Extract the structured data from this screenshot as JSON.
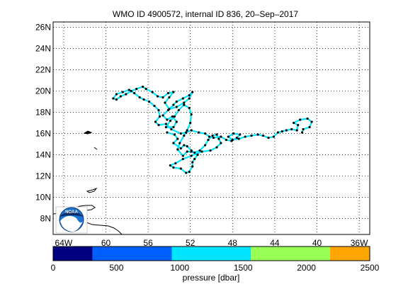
{
  "title": "WMO ID 4900572, internal ID 836, 20–Sep–2017",
  "map": {
    "lon_range": [
      -65,
      -35
    ],
    "lat_range": [
      6.5,
      26.5
    ],
    "lat_ticks": [
      8,
      10,
      12,
      14,
      16,
      18,
      20,
      22,
      24,
      26
    ],
    "lon_ticks": [
      -64,
      -60,
      -56,
      -52,
      -48,
      -44,
      -40,
      -36
    ],
    "lat_tick_labels": [
      "8N",
      "10N",
      "12N",
      "14N",
      "16N",
      "18N",
      "20N",
      "22N",
      "24N",
      "26N"
    ],
    "lon_tick_labels": [
      "64W",
      "60",
      "56",
      "52",
      "48",
      "44",
      "40",
      "36W"
    ],
    "grid": true,
    "logo_label": "NOAA"
  },
  "colorbar": {
    "label": "pressure [dbar]",
    "ticks": [
      0,
      500,
      1000,
      1500,
      2000,
      2500
    ],
    "tick_labels": [
      "0",
      "500",
      "1000",
      "1500",
      "2000",
      "2500"
    ],
    "segments": [
      {
        "from": 0,
        "to": 312,
        "color": "#000080"
      },
      {
        "from": 312,
        "to": 937,
        "color": "#0060ff"
      },
      {
        "from": 937,
        "to": 1562,
        "color": "#00e5ff"
      },
      {
        "from": 1562,
        "to": 2187,
        "color": "#99ff55"
      },
      {
        "from": 2187,
        "to": 2500,
        "color": "#ffa500"
      }
    ]
  },
  "colors": {
    "track": "#00e5ff",
    "profile_marker": "#000000",
    "coast": "#000000"
  },
  "trajectory": [
    [
      -54.2,
      16.1
    ],
    [
      -53.5,
      15.9
    ],
    [
      -53.2,
      15.5
    ],
    [
      -53.6,
      15.1
    ],
    [
      -52.9,
      14.6
    ],
    [
      -52.6,
      14.9
    ],
    [
      -52.3,
      14.8
    ],
    [
      -51.9,
      14.4
    ],
    [
      -51.6,
      14.2
    ],
    [
      -51.1,
      14.4
    ],
    [
      -50.6,
      14.9
    ],
    [
      -50.3,
      15.4
    ],
    [
      -49.9,
      15.8
    ],
    [
      -49.5,
      15.9
    ],
    [
      -49.3,
      15.5
    ],
    [
      -49.1,
      15.1
    ],
    [
      -49.5,
      14.7
    ],
    [
      -50.1,
      14.4
    ],
    [
      -50.9,
      14.3
    ],
    [
      -51.9,
      13.9
    ],
    [
      -52.7,
      13.6
    ],
    [
      -53.4,
      13.2
    ],
    [
      -53.9,
      13.0
    ],
    [
      -53.6,
      12.8
    ],
    [
      -52.9,
      12.7
    ],
    [
      -52.4,
      12.3
    ],
    [
      -52.1,
      12.4
    ],
    [
      -51.8,
      12.9
    ],
    [
      -51.8,
      13.3
    ],
    [
      -51.6,
      13.6
    ],
    [
      -51.3,
      14.0
    ],
    [
      -51.9,
      14.3
    ],
    [
      -52.3,
      14.3
    ],
    [
      -52.7,
      13.9
    ],
    [
      -53.2,
      14.5
    ],
    [
      -53.0,
      15.1
    ],
    [
      -52.6,
      15.8
    ],
    [
      -52.3,
      16.3
    ],
    [
      -52.0,
      17.0
    ],
    [
      -51.9,
      17.8
    ],
    [
      -52.1,
      18.4
    ],
    [
      -52.6,
      18.7
    ],
    [
      -53.1,
      18.2
    ],
    [
      -53.5,
      17.6
    ],
    [
      -53.9,
      17.2
    ],
    [
      -54.3,
      16.6
    ],
    [
      -53.6,
      16.6
    ],
    [
      -53.3,
      17.1
    ],
    [
      -53.7,
      17.6
    ],
    [
      -54.2,
      17.3
    ],
    [
      -54.6,
      17.7
    ],
    [
      -54.1,
      18.2
    ],
    [
      -53.6,
      18.7
    ],
    [
      -53.3,
      19.0
    ],
    [
      -52.7,
      19.3
    ],
    [
      -52.1,
      19.6
    ],
    [
      -51.8,
      19.9
    ],
    [
      -52.1,
      19.3
    ],
    [
      -52.6,
      18.9
    ],
    [
      -53.3,
      18.5
    ],
    [
      -54.0,
      18.3
    ],
    [
      -54.4,
      18.9
    ],
    [
      -54.0,
      19.4
    ],
    [
      -53.6,
      19.9
    ],
    [
      -54.1,
      19.8
    ],
    [
      -54.6,
      19.4
    ],
    [
      -55.1,
      19.5
    ],
    [
      -55.6,
      19.9
    ],
    [
      -56.2,
      20.2
    ],
    [
      -56.5,
      20.4
    ],
    [
      -57.1,
      20.2
    ],
    [
      -57.6,
      20.0
    ],
    [
      -58.1,
      19.7
    ],
    [
      -58.6,
      19.5
    ],
    [
      -59.0,
      19.2
    ],
    [
      -59.3,
      19.3
    ],
    [
      -59.0,
      19.7
    ],
    [
      -58.4,
      19.9
    ],
    [
      -57.8,
      20.1
    ],
    [
      -57.3,
      19.8
    ],
    [
      -56.8,
      19.4
    ],
    [
      -56.4,
      19.2
    ],
    [
      -55.9,
      19.0
    ],
    [
      -55.4,
      18.6
    ],
    [
      -55.0,
      18.2
    ],
    [
      -54.9,
      17.6
    ],
    [
      -55.3,
      17.1
    ],
    [
      -55.0,
      16.8
    ],
    [
      -54.3,
      16.9
    ],
    [
      -53.8,
      16.4
    ],
    [
      -52.9,
      16.0
    ],
    [
      -52.4,
      16.1
    ],
    [
      -51.9,
      16.3
    ],
    [
      -51.2,
      16.1
    ],
    [
      -50.6,
      16.0
    ],
    [
      -50.2,
      15.7
    ],
    [
      -49.8,
      15.6
    ],
    [
      -49.1,
      15.7
    ],
    [
      -48.6,
      15.4
    ],
    [
      -48.1,
      15.3
    ],
    [
      -47.6,
      15.6
    ],
    [
      -47.3,
      15.9
    ],
    [
      -47.9,
      16.0
    ],
    [
      -48.4,
      15.7
    ],
    [
      -48.0,
      15.4
    ],
    [
      -47.4,
      15.5
    ],
    [
      -46.8,
      15.7
    ],
    [
      -46.2,
      15.8
    ],
    [
      -45.6,
      15.9
    ],
    [
      -45.1,
      15.8
    ],
    [
      -44.6,
      15.6
    ],
    [
      -44.1,
      15.7
    ],
    [
      -43.7,
      16.1
    ],
    [
      -43.3,
      16.2
    ],
    [
      -42.9,
      16.3
    ],
    [
      -42.4,
      16.4
    ],
    [
      -41.9,
      16.3
    ],
    [
      -41.8,
      16.8
    ],
    [
      -42.2,
      17.0
    ],
    [
      -41.6,
      17.3
    ],
    [
      -40.9,
      17.4
    ],
    [
      -40.5,
      17.1
    ],
    [
      -40.7,
      16.6
    ],
    [
      -41.3,
      16.4
    ],
    [
      -41.4,
      16.1
    ]
  ]
}
